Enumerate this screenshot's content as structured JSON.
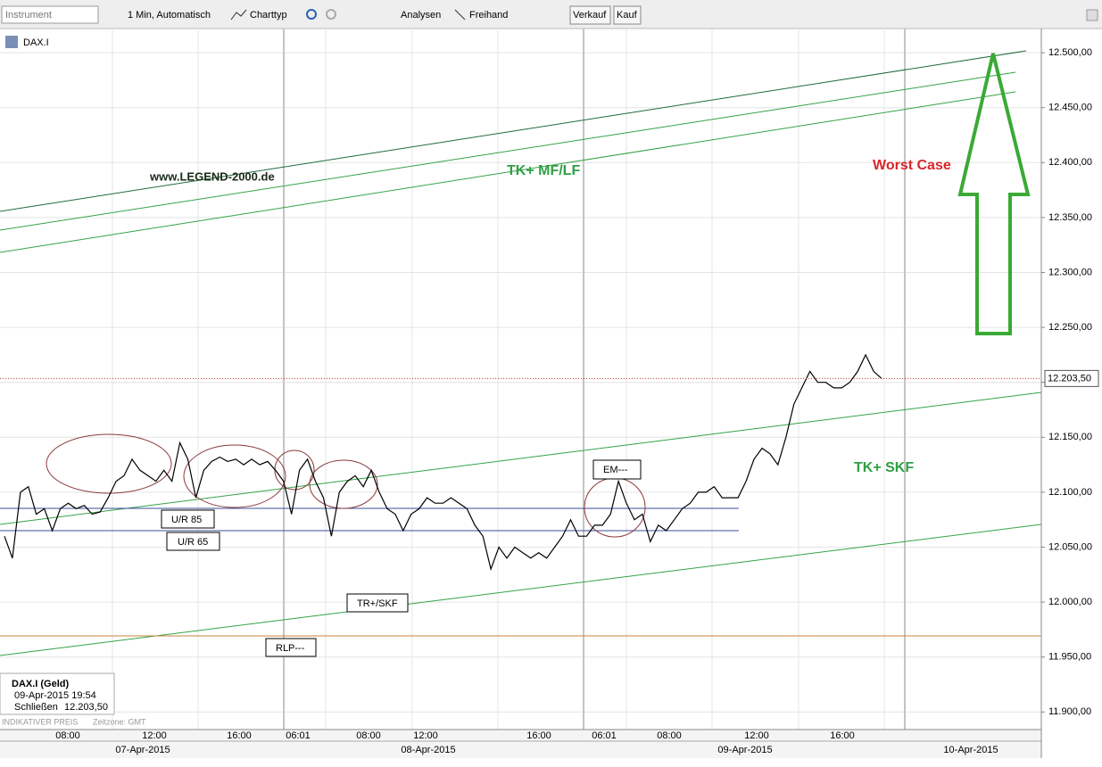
{
  "toolbar": {
    "instrument": "Instrument",
    "interval": "1 Min, Automatisch",
    "chart_type": "Charttyp",
    "analyses": "Analysen",
    "freehand": "Freihand",
    "sell": "Verkauf",
    "buy": "Kauf"
  },
  "chart_data": {
    "type": "line",
    "symbol": "DAX.I",
    "series": [
      {
        "name": "DAX.I (Geld)",
        "color": "#000000",
        "values": [
          12060,
          12040,
          12100,
          12105,
          12080,
          12085,
          12065,
          12085,
          12090,
          12085,
          12088,
          12080,
          12082,
          12095,
          12110,
          12115,
          12130,
          12120,
          12115,
          12110,
          12120,
          12110,
          12145,
          12130,
          12095,
          12120,
          12128,
          12132,
          12128,
          12130,
          12125,
          12130,
          12125,
          12128,
          12120,
          12110,
          12080,
          12120,
          12130,
          12110,
          12095,
          12060,
          12100,
          12110,
          12115,
          12105,
          12120,
          12100,
          12085,
          12080,
          12065,
          12080,
          12085,
          12095,
          12090,
          12090,
          12095,
          12090,
          12085,
          12070,
          12060,
          12030,
          12050,
          12040,
          12050,
          12045,
          12040,
          12045,
          12040,
          12050,
          12060,
          12075,
          12060,
          12060,
          12070,
          12070,
          12080,
          12110,
          12090,
          12075,
          12080,
          12055,
          12070,
          12065,
          12075,
          12085,
          12090,
          12100,
          12100,
          12105,
          12095,
          12095,
          12095,
          12110,
          12130,
          12140,
          12135,
          12125,
          12150,
          12180,
          12195,
          12210,
          12200,
          12200,
          12195,
          12195,
          12200,
          12210,
          12225,
          12210,
          12203.5
        ]
      }
    ],
    "ylim": [
      11884,
      12522
    ],
    "yticks": [
      {
        "value": 11900,
        "label": "11.900,00"
      },
      {
        "value": 11950,
        "label": "11.950,00"
      },
      {
        "value": 12000,
        "label": "12.000,00"
      },
      {
        "value": 12050,
        "label": "12.050,00"
      },
      {
        "value": 12100,
        "label": "12.100,00"
      },
      {
        "value": 12150,
        "label": "12.150,00"
      },
      {
        "value": 12200,
        "label": "12.200,00"
      },
      {
        "value": 12250,
        "label": "12.250,00"
      },
      {
        "value": 12300,
        "label": "12.300,00"
      },
      {
        "value": 12350,
        "label": "12.350,00"
      },
      {
        "value": 12400,
        "label": "12.400,00"
      },
      {
        "value": 12450,
        "label": "12.450,00"
      },
      {
        "value": 12500,
        "label": "12.500,00"
      }
    ],
    "last_price": {
      "value": 12203.5,
      "label": "12.203,50"
    },
    "time_labels": [
      "08:00",
      "12:00",
      "16:00",
      "06:01",
      "08:00",
      "12:00",
      "16:00",
      "06:01",
      "08:00",
      "12:00",
      "16:00"
    ],
    "date_labels": [
      "07-Apr-2015",
      "08-Apr-2015",
      "09-Apr-2015",
      "10-Apr-2015"
    ],
    "annotations": [
      "www.LEGEND-2000.de",
      "TK+ MF/LF",
      "Worst Case",
      "TK+ SKF",
      "U/R 85",
      "U/R 65",
      "TR+/SKF",
      "RLP---",
      "EM---"
    ],
    "info": {
      "timestamp": "09-Apr-2015 19:54",
      "close_label": "Schließen"
    },
    "footer": {
      "price_note": "INDIKATIVER PREIS",
      "timezone": "Zeitzone: GMT"
    }
  }
}
